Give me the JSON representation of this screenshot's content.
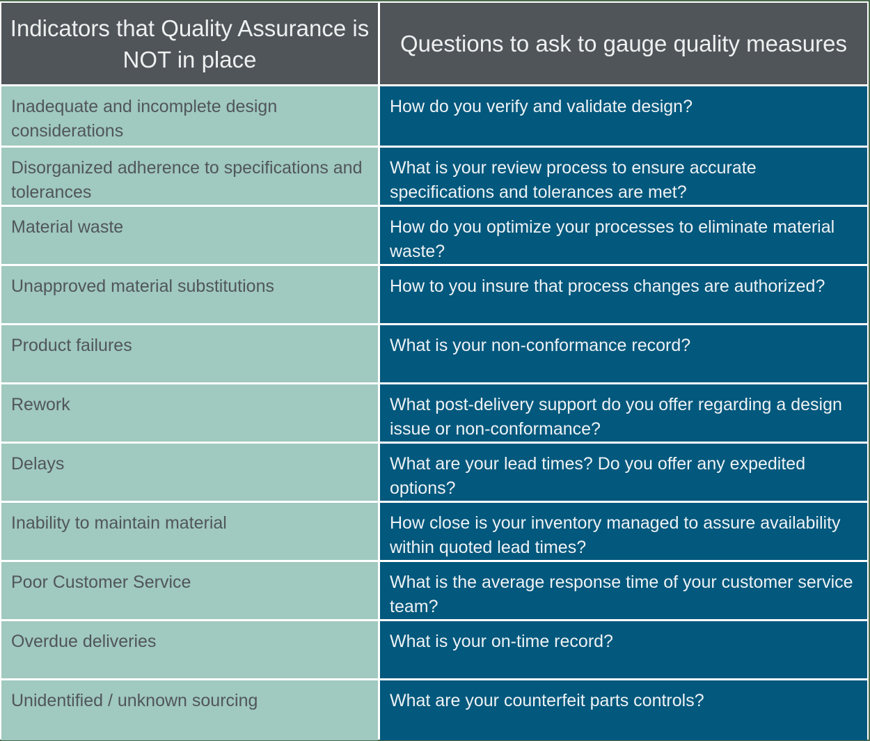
{
  "header": {
    "left": "Indicators that Quality Assurance is NOT in place",
    "right": "Questions to ask to gauge quality measures"
  },
  "colors": {
    "header_bg": "#50555a",
    "left_bg": "#a0c9bf",
    "right_bg": "#02587d",
    "border": "#ffffff"
  },
  "rows": [
    {
      "indicator": "Inadequate and incomplete design considerations",
      "question": "How do you verify and validate design?"
    },
    {
      "indicator": "Disorganized adherence to specifications and tolerances",
      "question": "What is your review process to ensure accurate specifications and tolerances are met?"
    },
    {
      "indicator": "Material waste",
      "question": "How do you optimize your processes to eliminate material waste?"
    },
    {
      "indicator": "Unapproved material substitutions",
      "question": "How to you insure that process changes are authorized?"
    },
    {
      "indicator": "Product failures",
      "question": "What is your non-conformance record?"
    },
    {
      "indicator": "Rework",
      "question": "What post-delivery support do you offer regarding a design issue or non-conformance?"
    },
    {
      "indicator": "Delays",
      "question": "What are your lead times?  Do you offer any expedited options?"
    },
    {
      "indicator": "Inability to maintain material",
      "question": "How close is your inventory managed to assure availability within quoted lead times?"
    },
    {
      "indicator": "Poor Customer Service",
      "question": "What is the average response time of your customer service team?"
    },
    {
      "indicator": "Overdue deliveries",
      "question": "What is your on-time record?"
    },
    {
      "indicator": "Unidentified / unknown sourcing",
      "question": "What are your counterfeit parts controls?"
    }
  ]
}
